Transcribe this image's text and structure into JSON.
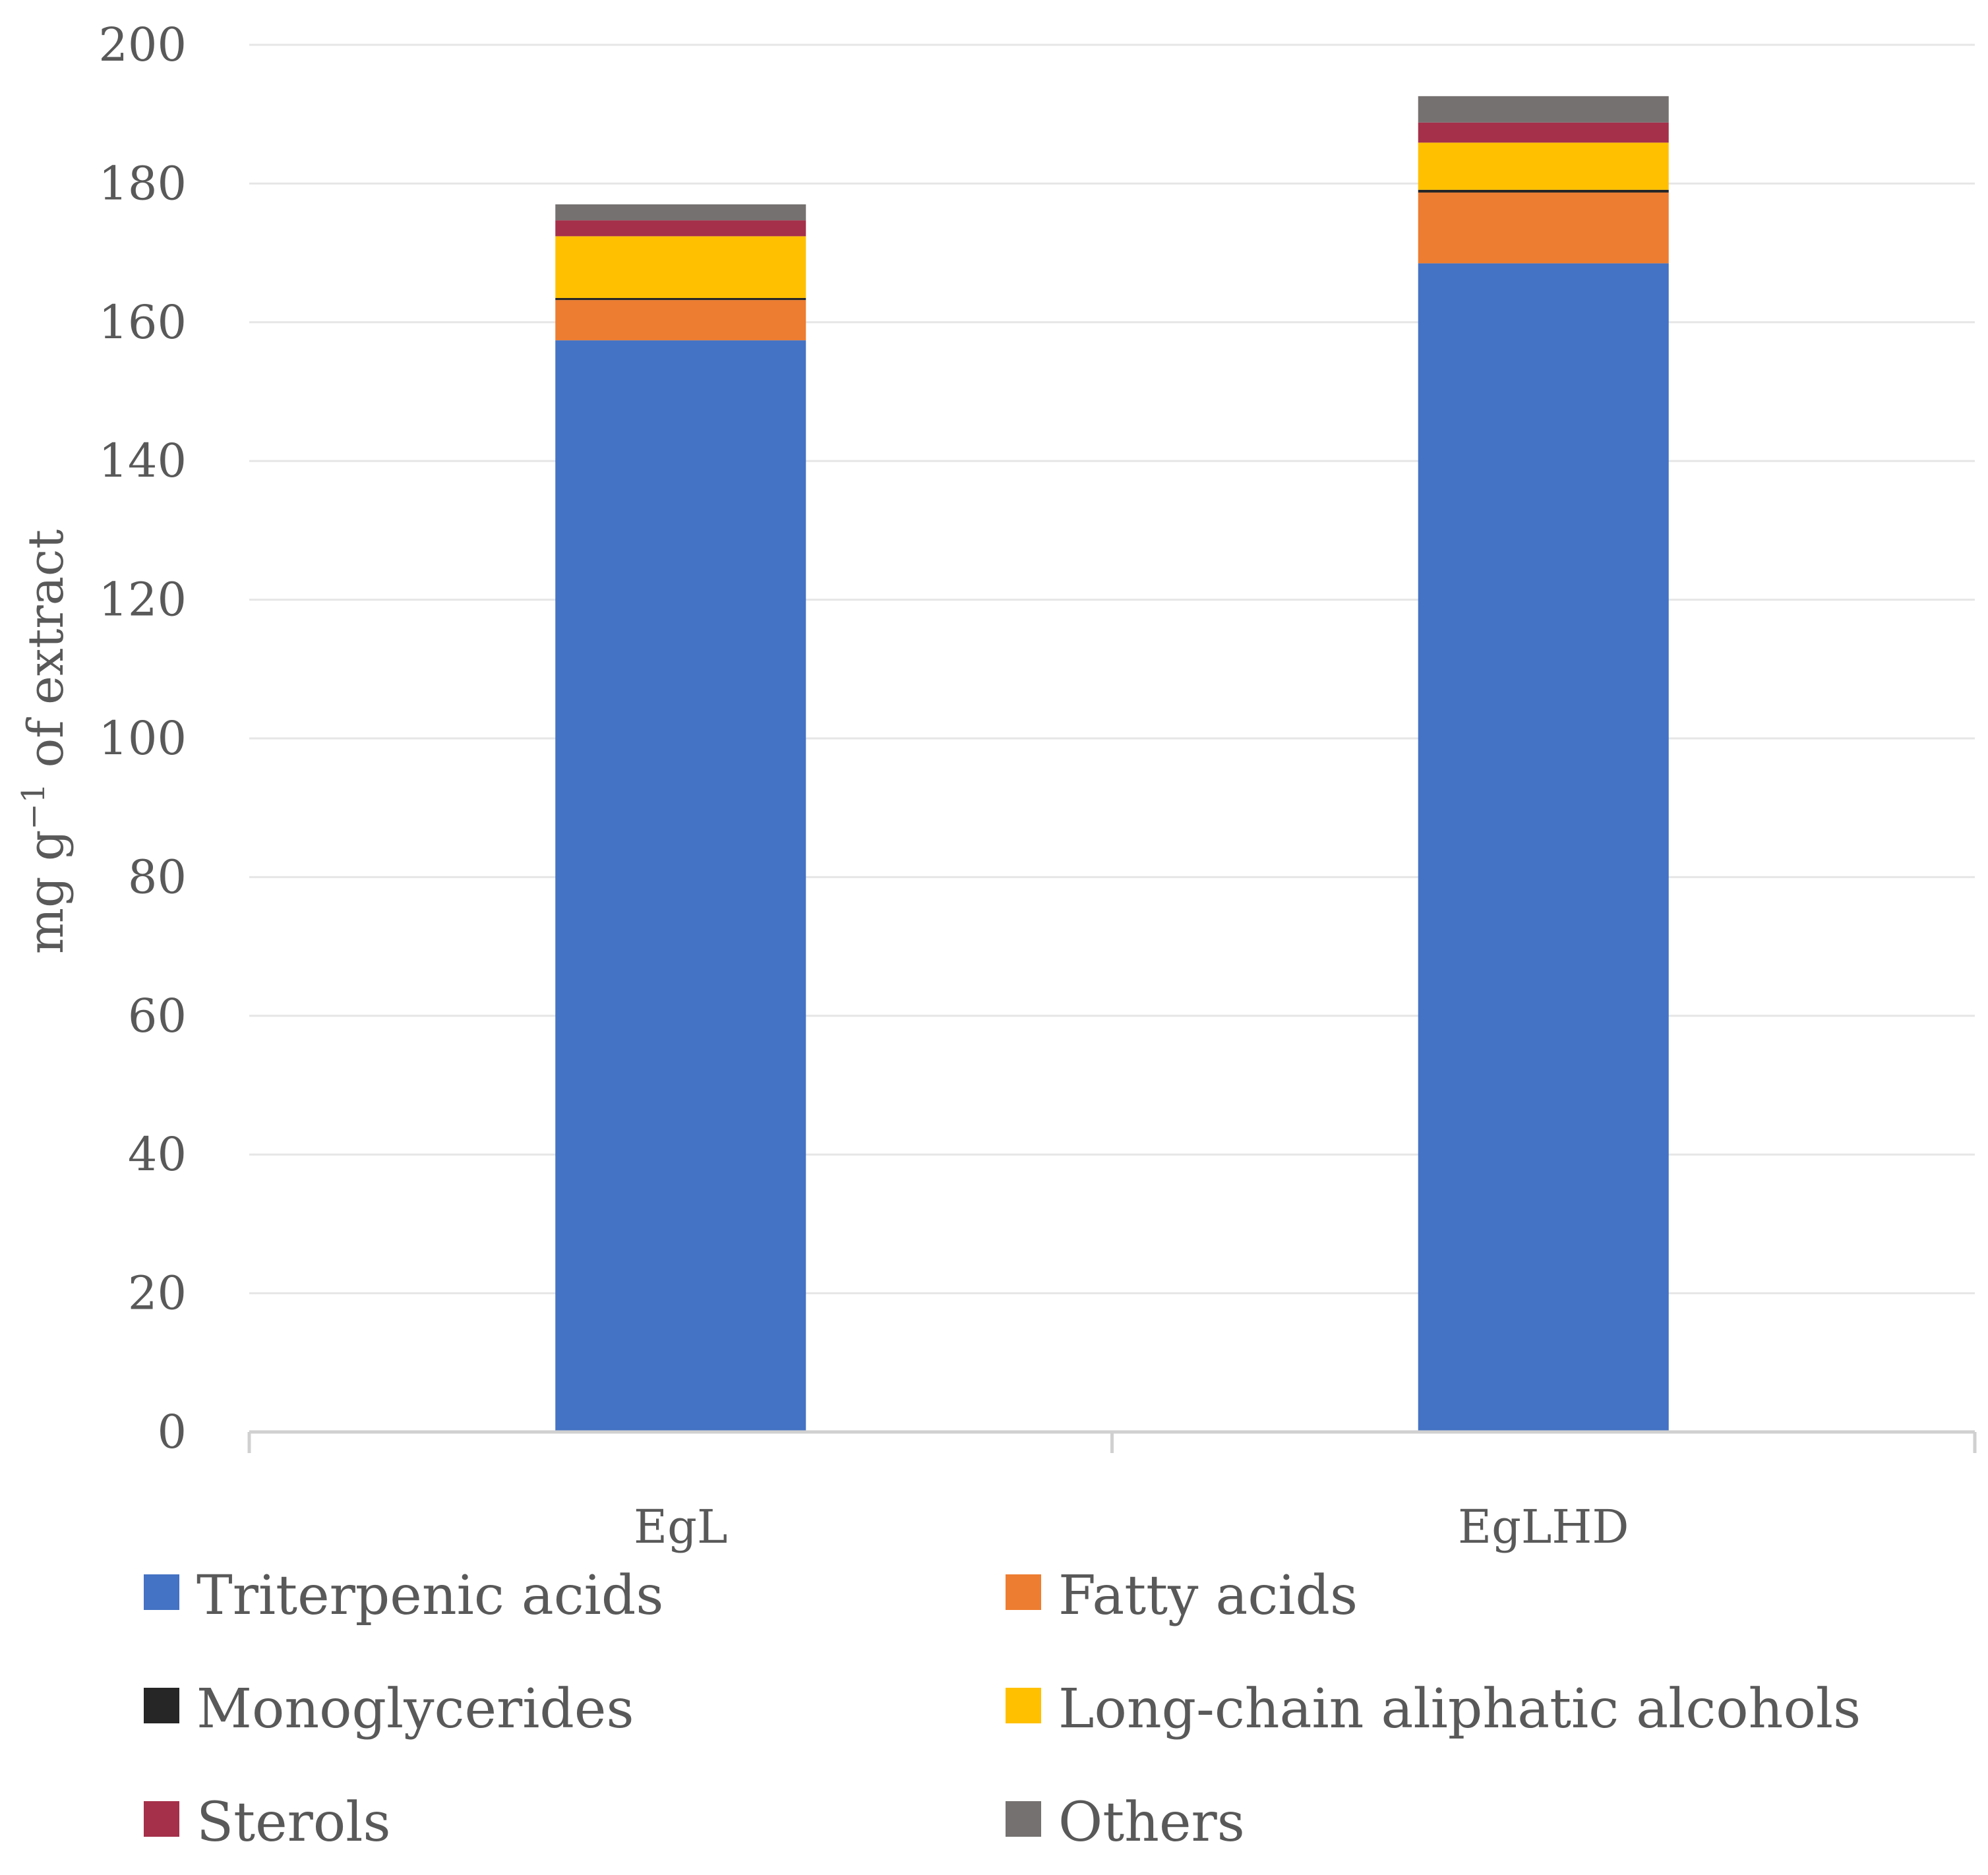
{
  "chart_data": {
    "type": "bar",
    "stacked": true,
    "title": "",
    "xlabel": "",
    "ylabel": "mg g",
    "ylabel_superscript": "−1",
    "ylabel_suffix": " of extract",
    "ylim": [
      0,
      200
    ],
    "yticks": [
      0,
      20,
      40,
      60,
      80,
      100,
      120,
      140,
      160,
      180,
      200
    ],
    "categories": [
      "EgL",
      "EgLHD"
    ],
    "grid": true,
    "legend_position": "bottom",
    "series": [
      {
        "name": "Triterpenic acids",
        "color": "#4472C4",
        "values": [
          157.4,
          168.5
        ]
      },
      {
        "name": "Fatty acids",
        "color": "#ED7D31",
        "values": [
          5.8,
          10.2
        ]
      },
      {
        "name": "Monoglycerides",
        "color": "#262626",
        "values": [
          0.3,
          0.4
        ]
      },
      {
        "name": "Long-chain aliphatic alcohols",
        "color": "#FFC000",
        "values": [
          8.9,
          6.8
        ]
      },
      {
        "name": "Sterols",
        "color": "#A5304A",
        "values": [
          2.3,
          2.9
        ]
      },
      {
        "name": "Others",
        "color": "#767171",
        "values": [
          2.3,
          3.8
        ]
      }
    ]
  }
}
